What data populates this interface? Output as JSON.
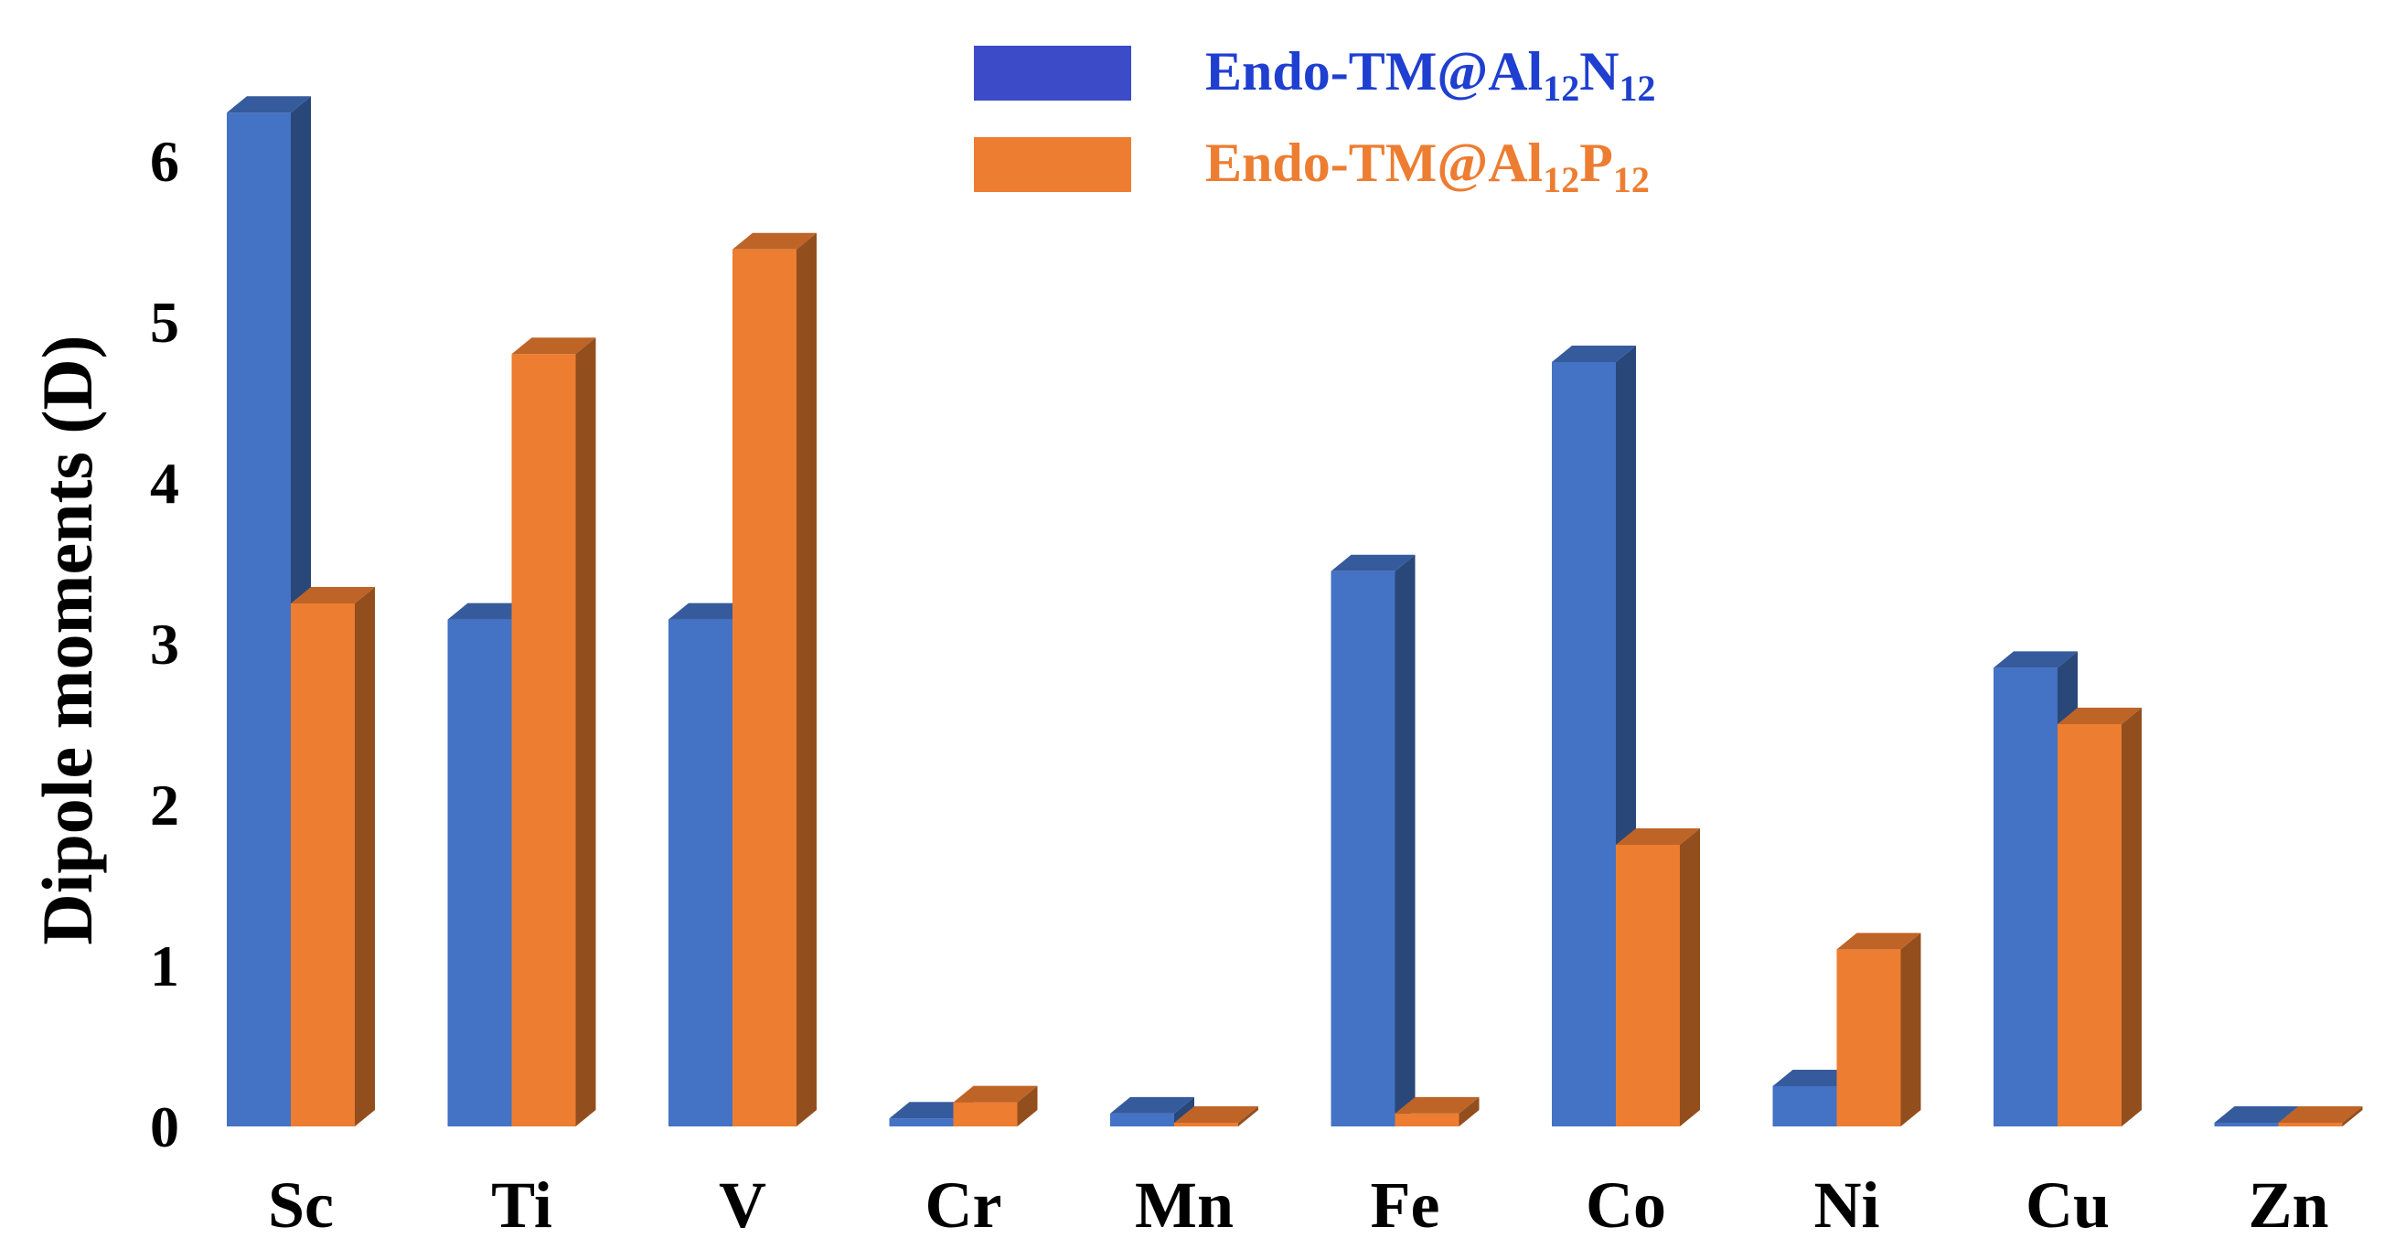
{
  "chart_data": {
    "type": "bar",
    "style": "3d-clustered-column",
    "categories": [
      "Sc",
      "Ti",
      "V",
      "Cr",
      "Mn",
      "Fe",
      "Co",
      "Ni",
      "Cu",
      "Zn"
    ],
    "series": [
      {
        "name": "Endo-TM@Al12N12",
        "legend_main": "Endo-TM@Al",
        "legend_sub1": "12",
        "legend_mid": "N",
        "legend_sub2": "12",
        "color": "#4472C4",
        "legend_color": "#3C4BC8",
        "text_color": "#1F3FD0",
        "values": [
          6.3,
          3.15,
          3.15,
          0.05,
          0.08,
          3.45,
          4.75,
          0.25,
          2.85,
          0.02
        ]
      },
      {
        "name": "Endo-TM@Al12P12",
        "legend_main": "Endo-TM@Al",
        "legend_sub1": "12",
        "legend_mid": "P",
        "legend_sub2": "12",
        "color": "#ED7D31",
        "legend_color": "#ED7D31",
        "text_color": "#ED7D31",
        "values": [
          3.25,
          4.8,
          5.45,
          0.15,
          0.02,
          0.08,
          1.75,
          1.1,
          2.5,
          0.01
        ]
      }
    ],
    "ylabel": "Dipole moments (D)",
    "xlabel": "",
    "yticks": [
      0,
      1,
      2,
      3,
      4,
      5,
      6
    ],
    "ylim": [
      0,
      6.5
    ],
    "grid": false,
    "legend_position": "top-center"
  }
}
